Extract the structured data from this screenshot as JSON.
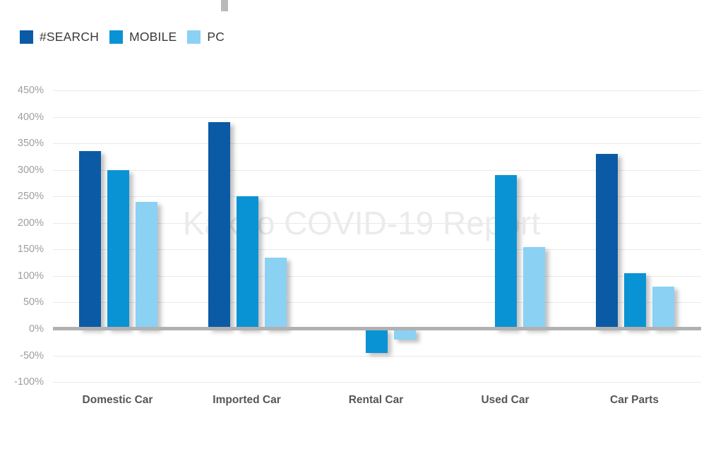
{
  "watermark": "Kakao COVID-19 Report",
  "chart_data": {
    "type": "bar",
    "title": "",
    "categories": [
      "Domestic Car",
      "Imported Car",
      "Rental Car",
      "Used Car",
      "Car Parts"
    ],
    "series": [
      {
        "name": "#SEARCH",
        "color": "#0b5aa5",
        "values": [
          335,
          390,
          null,
          null,
          330
        ]
      },
      {
        "name": "MOBILE",
        "color": "#0a93d4",
        "values": [
          300,
          250,
          -45,
          290,
          105
        ]
      },
      {
        "name": "PC",
        "color": "#8bd1f4",
        "values": [
          240,
          135,
          -20,
          155,
          80
        ]
      }
    ],
    "ylim": [
      -100,
      450
    ],
    "ytick_step": 50,
    "ytick_suffix": "%",
    "grid": true,
    "legend_position": "top-left",
    "watermark": "Kakao COVID-19 Report",
    "colors": {
      "gridline": "#e9e9e9",
      "zero_axis": "#b1b1b1",
      "tick_label": "#9e9e9e",
      "category_label": "#565656",
      "legend_label": "#3a3a3a",
      "watermark": "#ebebeb"
    }
  }
}
